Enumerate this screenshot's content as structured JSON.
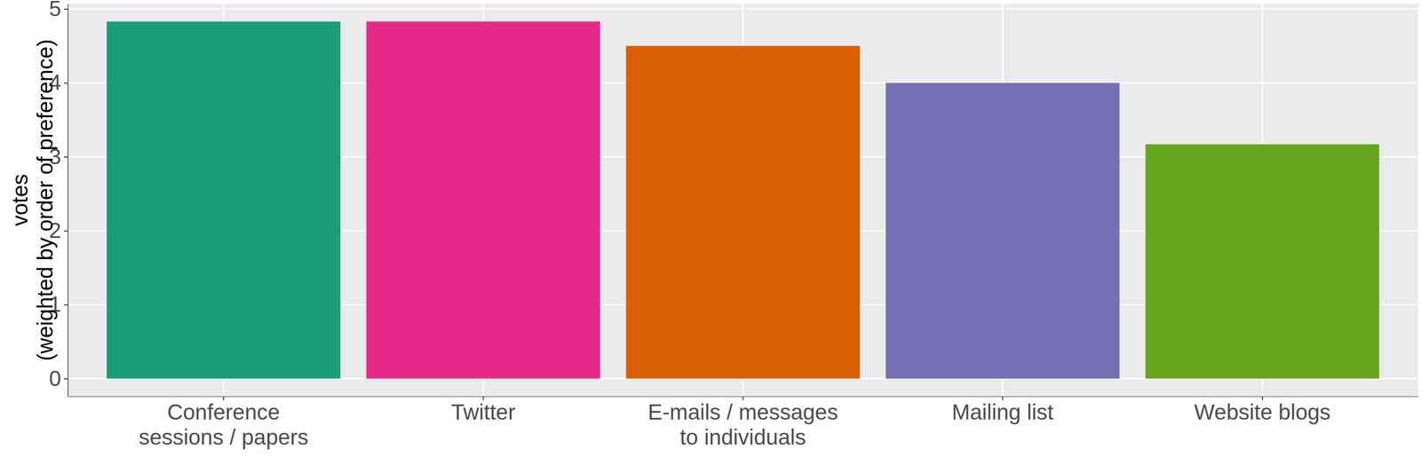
{
  "chart_data": {
    "type": "bar",
    "y_label": "votes\n(weighted by order of preference)",
    "categories": [
      "Conference\nsessions / papers",
      "Twitter",
      "E-mails / messages\nto individuals",
      "Mailing list",
      "Website blogs"
    ],
    "values": [
      4.83,
      4.83,
      4.5,
      4.0,
      3.17
    ],
    "colors": [
      "#1b9e77",
      "#e7298a",
      "#d95f02",
      "#7570b3",
      "#66a61e"
    ],
    "ylim": [
      -0.24,
      5.07
    ],
    "yticks": [
      0,
      1,
      2,
      3,
      4,
      5
    ],
    "grid": true
  }
}
